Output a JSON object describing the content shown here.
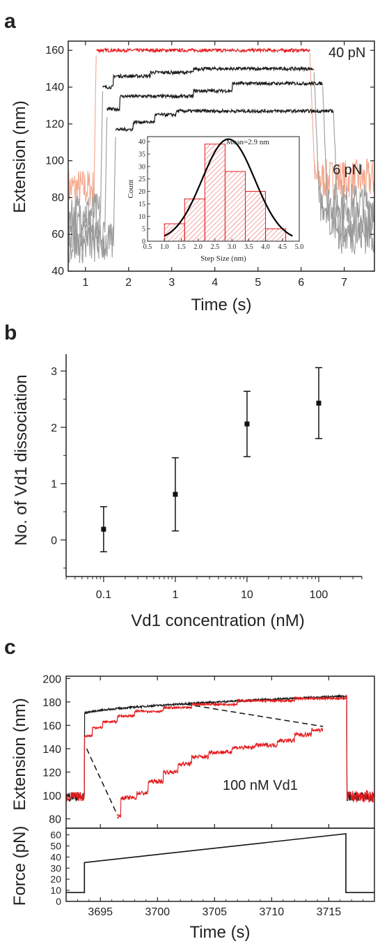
{
  "panels": {
    "a": "a",
    "b": "b",
    "c": "c"
  },
  "chart_data": [
    {
      "type": "line",
      "panel": "a",
      "xlabel": "Time (s)",
      "ylabel": "Extension (nm)",
      "xlim": [
        0.6,
        7.7
      ],
      "ylim": [
        40,
        165
      ],
      "xticks": [
        "1",
        "2",
        "3",
        "4",
        "5",
        "6",
        "7"
      ],
      "yticks": [
        "40",
        "60",
        "80",
        "100",
        "120",
        "140",
        "160"
      ],
      "annotations": {
        "high_force": "40 pN",
        "low_force": "6 pN"
      },
      "colors": {
        "high_force_trace": "#e31a1c",
        "low_force_red": "#f4a58a",
        "step_trace": "#1a1a1a",
        "low_force_grey": "#9a9a9a"
      },
      "series": [
        {
          "level_low": 85,
          "rise_t": 1.2,
          "fall_t": 6.2,
          "plateaus": [
            [
              1.25,
              160
            ]
          ],
          "color_key": "red"
        },
        {
          "level_low": 72,
          "rise_t": 1.35,
          "fall_t": 6.3,
          "plateaus": [
            [
              1.4,
              140
            ],
            [
              1.65,
              146
            ],
            [
              2.5,
              148
            ],
            [
              3.5,
              150
            ]
          ],
          "color_key": "black"
        },
        {
          "level_low": 62,
          "rise_t": 1.45,
          "fall_t": 6.5,
          "plateaus": [
            [
              1.5,
              128
            ],
            [
              1.8,
              135
            ],
            [
              3.5,
              138
            ],
            [
              4.4,
              142
            ]
          ],
          "color_key": "black"
        },
        {
          "level_low": 55,
          "rise_t": 1.65,
          "fall_t": 6.75,
          "plateaus": [
            [
              1.7,
              117
            ],
            [
              2.1,
              121
            ],
            [
              2.6,
              125
            ],
            [
              3.1,
              127
            ]
          ],
          "color_key": "black"
        }
      ],
      "inset": {
        "type": "bar",
        "xlabel": "Step Size (nm)",
        "ylabel": "Count",
        "xlim": [
          0.5,
          5.0
        ],
        "ylim": [
          0,
          42
        ],
        "xticks": [
          "0.5",
          "1.0",
          "1.5",
          "2.0",
          "2.5",
          "3.0",
          "3.5",
          "4.0",
          "4.5",
          "5.0"
        ],
        "yticks": [
          "0",
          "5",
          "10",
          "15",
          "20",
          "25",
          "30",
          "35",
          "40"
        ],
        "bins": [
          [
            1.0,
            1.6,
            7
          ],
          [
            1.6,
            2.2,
            17
          ],
          [
            2.2,
            2.8,
            39
          ],
          [
            2.8,
            3.4,
            28
          ],
          [
            3.4,
            4.0,
            20
          ],
          [
            4.0,
            4.6,
            5
          ]
        ],
        "fit_mean": 2.9,
        "fit_sigma": 0.78,
        "fit_peak": 41,
        "fit_label": "Mean=2.9 nm",
        "colors": {
          "bar_edge": "#e31a1c",
          "bar_hatch": "#e31a1c",
          "fit": "#000000"
        }
      }
    },
    {
      "type": "scatter",
      "panel": "b",
      "xlabel": "Vd1 concentration (nM)",
      "ylabel": "No. of Vd1 dissociation",
      "xscale": "log",
      "xlim": [
        0.03,
        400
      ],
      "ylim": [
        -0.65,
        3.3
      ],
      "xticks": [
        "0.1",
        "1",
        "10",
        "100"
      ],
      "yticks": [
        "0",
        "1",
        "2",
        "3"
      ],
      "x": [
        0.1,
        1,
        10,
        100
      ],
      "y": [
        0.19,
        0.81,
        2.06,
        2.43
      ],
      "yerr": [
        0.4,
        0.65,
        0.58,
        0.63
      ]
    },
    {
      "type": "line",
      "panel": "c-top",
      "xlabel": "",
      "ylabel": "Extension (nm)",
      "xlim": [
        3692,
        3719
      ],
      "ylim": [
        72,
        202
      ],
      "yticks": [
        "80",
        "100",
        "120",
        "140",
        "160",
        "180",
        "200"
      ],
      "annotation": "100 nM Vd1",
      "colors": {
        "control": "#1a1a1a",
        "vd1": "#e31a1c"
      },
      "control": {
        "low": 99,
        "rise_t": 3693.6,
        "start_high": 170,
        "end_high": 185,
        "fall_t": 3716.6
      },
      "vd1_main": {
        "low": 99,
        "rise_t": 3693.6,
        "plateaus": [
          [
            3693.7,
            151
          ],
          [
            3694.3,
            158
          ],
          [
            3695.2,
            163
          ],
          [
            3696.5,
            168
          ],
          [
            3698.0,
            172
          ],
          [
            3700.5,
            175
          ],
          [
            3703,
            178
          ],
          [
            3707,
            181
          ],
          [
            3712,
            183
          ],
          [
            3716.5,
            185
          ]
        ],
        "fall_t": 3716.6
      },
      "zoom_trace": {
        "t_range": [
          3696.5,
          3714.5
        ],
        "plateaus": [
          [
            3696.5,
            82
          ],
          [
            3696.8,
            98
          ],
          [
            3698.2,
            102
          ],
          [
            3699.2,
            112
          ],
          [
            3700.5,
            120
          ],
          [
            3701.8,
            127
          ],
          [
            3703,
            133
          ],
          [
            3704.5,
            137
          ],
          [
            3706.5,
            141
          ],
          [
            3708.5,
            143
          ],
          [
            3710.5,
            147
          ],
          [
            3712,
            152
          ],
          [
            3713.5,
            156
          ]
        ]
      },
      "zoom_lines": [
        [
          [
            3693.8,
            140
          ],
          [
            3696.5,
            83
          ]
        ],
        [
          [
            3702.5,
            178
          ],
          [
            3714.5,
            159
          ]
        ]
      ]
    },
    {
      "type": "line",
      "panel": "c-bottom",
      "xlabel": "Time (s)",
      "ylabel": "Force (pN)",
      "xlim": [
        3692,
        3719
      ],
      "ylim": [
        0,
        66
      ],
      "xticks": [
        "3695",
        "3700",
        "3705",
        "3710",
        "3715"
      ],
      "yticks": [
        "0",
        "10",
        "20",
        "30",
        "40",
        "50",
        "60"
      ],
      "x": [
        3692,
        3693.6,
        3693.6,
        3716.5,
        3716.5,
        3719
      ],
      "y": [
        8,
        8,
        35,
        61,
        8,
        8
      ]
    }
  ]
}
